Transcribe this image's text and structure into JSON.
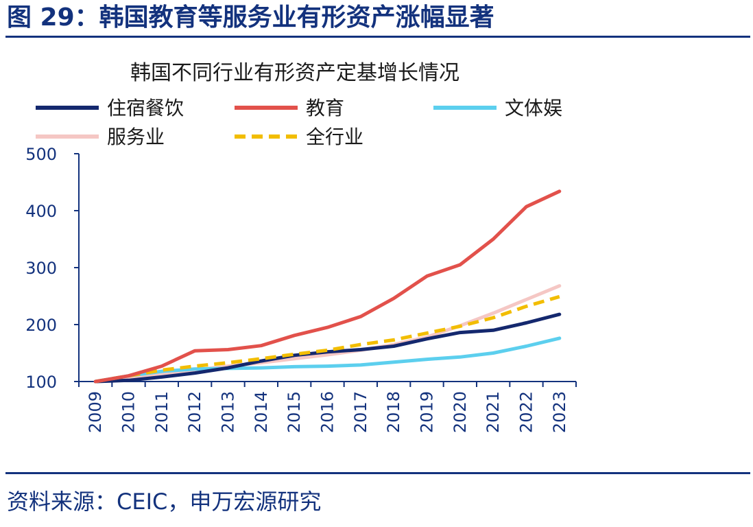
{
  "figure_title": "图 29：韩国教育等服务业有形资产涨幅显著",
  "source_note": "资料来源：CEIC，申万宏源研究",
  "colors": {
    "accent": "#13327d",
    "accommodation_food": "#14286e",
    "education": "#e2514b",
    "culture_sports": "#5ccfee",
    "services": "#f5c7c4",
    "all_industries": "#f2bd00"
  },
  "chart_data": {
    "type": "line",
    "title": "韩国不同行业有形资产定基增长情况",
    "xlabel": "",
    "ylabel": "",
    "categories": [
      "2009",
      "2010",
      "2011",
      "2012",
      "2013",
      "2014",
      "2015",
      "2016",
      "2017",
      "2018",
      "2019",
      "2020",
      "2021",
      "2022",
      "2023"
    ],
    "ylim": [
      100,
      500
    ],
    "yticks": [
      100,
      200,
      300,
      400,
      500
    ],
    "grid": false,
    "legend_position": "top",
    "series": [
      {
        "name": "服务业",
        "key": "services",
        "style": "solid",
        "values": [
          100,
          108,
          113,
          120,
          127,
          133,
          140,
          147,
          155,
          165,
          178,
          198,
          220,
          244,
          268
        ]
      },
      {
        "name": "文体娱",
        "key": "culture_sports",
        "style": "solid",
        "values": [
          100,
          110,
          118,
          122,
          123,
          124,
          126,
          127,
          129,
          134,
          139,
          143,
          150,
          162,
          176
        ]
      },
      {
        "name": "住宿餐饮",
        "key": "accommodation_food",
        "style": "solid",
        "values": [
          100,
          102,
          108,
          115,
          124,
          136,
          146,
          152,
          156,
          162,
          175,
          186,
          190,
          203,
          218
        ]
      },
      {
        "name": "全行业",
        "key": "all_industries",
        "style": "dashed",
        "values": [
          100,
          110,
          120,
          127,
          133,
          140,
          148,
          155,
          165,
          173,
          185,
          197,
          212,
          232,
          249
        ]
      },
      {
        "name": "教育",
        "key": "education",
        "style": "solid",
        "values": [
          100,
          110,
          127,
          154,
          156,
          163,
          181,
          195,
          214,
          246,
          285,
          305,
          350,
          407,
          434
        ]
      }
    ],
    "legend": [
      {
        "name": "住宿餐饮",
        "key": "accommodation_food",
        "style": "solid"
      },
      {
        "name": "教育",
        "key": "education",
        "style": "solid"
      },
      {
        "name": "文体娱",
        "key": "culture_sports",
        "style": "solid"
      },
      {
        "name": "服务业",
        "key": "services",
        "style": "solid"
      },
      {
        "name": "全行业",
        "key": "all_industries",
        "style": "dashed"
      }
    ]
  }
}
